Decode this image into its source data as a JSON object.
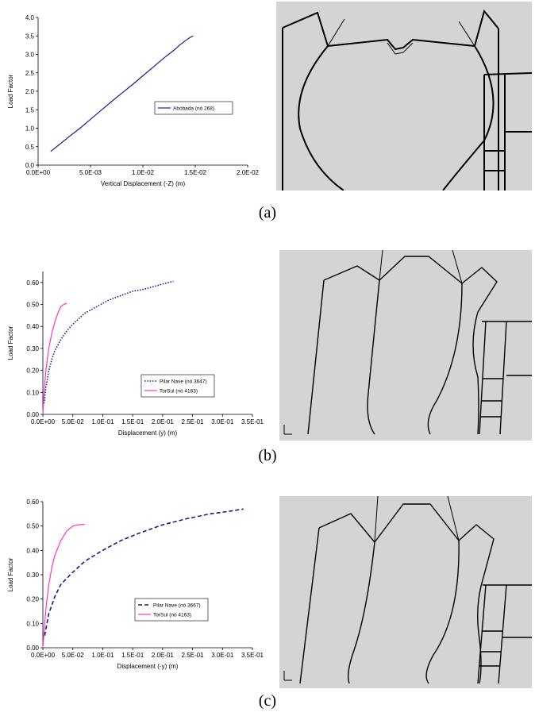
{
  "captions": [
    "(a)",
    "(b)",
    "(c)"
  ],
  "chart_data": [
    {
      "type": "line",
      "xlabel": "Vertical Displacement (-Z)  (m)",
      "ylabel": "Load Factor",
      "xlim": [
        0,
        0.02
      ],
      "ylim": [
        0,
        4.0
      ],
      "xticks": [
        0,
        0.005,
        0.01,
        0.015,
        0.02
      ],
      "xtick_labels": [
        "0.0E+00",
        "5.0E-03",
        "1.0E-02",
        "1.5E-02",
        "2.0E-02"
      ],
      "yticks": [
        0,
        0.5,
        1.0,
        1.5,
        2.0,
        2.5,
        3.0,
        3.5,
        4.0
      ],
      "ytick_labels": [
        "0.0",
        "0.5",
        "1.0",
        "1.5",
        "2.0",
        "2.5",
        "3.0",
        "3.5",
        "4.0"
      ],
      "grid": false,
      "legend_position": "center-right",
      "series": [
        {
          "name": "Abóbada (nó 268)",
          "color": "#1a1a8c",
          "style": "solid",
          "x": [
            0.0012,
            0.002,
            0.003,
            0.004,
            0.005,
            0.006,
            0.007,
            0.008,
            0.009,
            0.01,
            0.011,
            0.012,
            0.013,
            0.0135,
            0.014,
            0.0145,
            0.0148
          ],
          "y": [
            0.37,
            0.55,
            0.78,
            1.0,
            1.24,
            1.48,
            1.72,
            1.95,
            2.18,
            2.42,
            2.66,
            2.9,
            3.12,
            3.25,
            3.36,
            3.46,
            3.5
          ]
        }
      ]
    },
    {
      "type": "line",
      "xlabel": "Displacement (y)  (m)",
      "ylabel": "Load Factor",
      "xlim": [
        0,
        0.35
      ],
      "ylim": [
        0,
        0.65
      ],
      "xticks": [
        0,
        0.05,
        0.1,
        0.15,
        0.2,
        0.25,
        0.3,
        0.35
      ],
      "xtick_labels": [
        "0.0E+00",
        "5.0E-02",
        "1.0E-01",
        "1.5E-01",
        "2.0E-01",
        "2.5E-01",
        "3.0E-01",
        "3.5E-01"
      ],
      "yticks": [
        0,
        0.1,
        0.2,
        0.3,
        0.4,
        0.5,
        0.6
      ],
      "ytick_labels": [
        "0.00",
        "0.10",
        "0.20",
        "0.30",
        "0.40",
        "0.50",
        "0.60"
      ],
      "grid": false,
      "legend_position": "center-right",
      "series": [
        {
          "name": "Pilar Nave (nó 3647)",
          "color": "#1a1a8c",
          "style": "dotted",
          "x": [
            0.002,
            0.005,
            0.01,
            0.015,
            0.02,
            0.03,
            0.04,
            0.05,
            0.07,
            0.09,
            0.11,
            0.13,
            0.15,
            0.17,
            0.19,
            0.21,
            0.218
          ],
          "y": [
            0.05,
            0.12,
            0.2,
            0.25,
            0.29,
            0.34,
            0.38,
            0.41,
            0.46,
            0.49,
            0.52,
            0.54,
            0.56,
            0.57,
            0.585,
            0.6,
            0.605
          ]
        },
        {
          "name": "TorSul (nó 4163)",
          "color": "#ff33cc",
          "style": "solid",
          "x": [
            0.0,
            0.002,
            0.005,
            0.01,
            0.015,
            0.02,
            0.025,
            0.03,
            0.035,
            0.04
          ],
          "y": [
            0.0,
            0.1,
            0.2,
            0.3,
            0.37,
            0.42,
            0.46,
            0.49,
            0.5,
            0.505
          ]
        }
      ]
    },
    {
      "type": "line",
      "xlabel": "Displacement (-y)  (m)",
      "ylabel": "Load Factor",
      "xlim": [
        0,
        0.35
      ],
      "ylim": [
        0,
        0.6
      ],
      "xticks": [
        0,
        0.05,
        0.1,
        0.15,
        0.2,
        0.25,
        0.3,
        0.35
      ],
      "xtick_labels": [
        "0.0E+00",
        "5.0E-02",
        "1.0E-01",
        "1.5E-01",
        "2.0E-01",
        "2.5E-01",
        "3.0E-01",
        "3.5E-01"
      ],
      "yticks": [
        0,
        0.1,
        0.2,
        0.3,
        0.4,
        0.5,
        0.6
      ],
      "ytick_labels": [
        "0.00",
        "0.10",
        "0.20",
        "0.30",
        "0.40",
        "0.50",
        "0.60"
      ],
      "grid": false,
      "legend_position": "center-right",
      "series": [
        {
          "name": "Pilar Nave (nó 3667)",
          "color": "#1a1a8c",
          "style": "dashed",
          "x": [
            0.003,
            0.01,
            0.02,
            0.03,
            0.05,
            0.07,
            0.1,
            0.13,
            0.16,
            0.2,
            0.24,
            0.28,
            0.31,
            0.335
          ],
          "y": [
            0.05,
            0.14,
            0.21,
            0.26,
            0.31,
            0.355,
            0.4,
            0.44,
            0.47,
            0.505,
            0.53,
            0.55,
            0.56,
            0.57
          ]
        },
        {
          "name": "TorSul (nó 4163)",
          "color": "#ff33cc",
          "style": "solid",
          "x": [
            0.0,
            0.003,
            0.006,
            0.01,
            0.015,
            0.02,
            0.03,
            0.04,
            0.05,
            0.06,
            0.07
          ],
          "y": [
            0.0,
            0.1,
            0.18,
            0.26,
            0.33,
            0.38,
            0.44,
            0.48,
            0.5,
            0.505,
            0.507
          ]
        }
      ]
    }
  ]
}
